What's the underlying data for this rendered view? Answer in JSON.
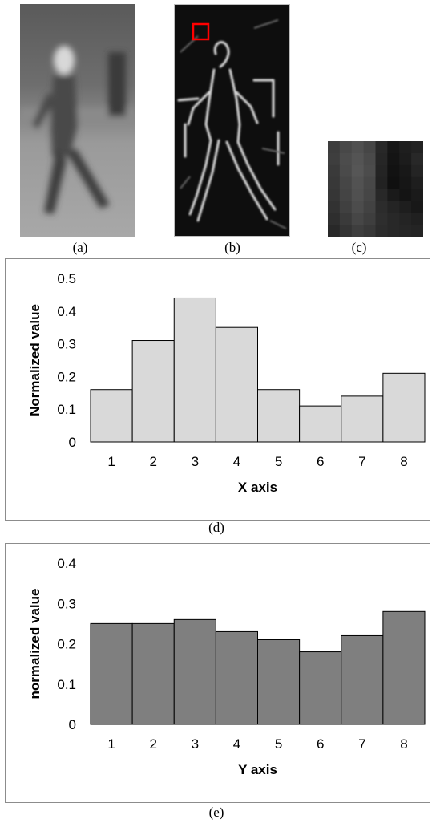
{
  "panels": {
    "a": {
      "caption": "(a)"
    },
    "b": {
      "caption": "(b)"
    },
    "c": {
      "caption": "(c)"
    }
  },
  "colors": {
    "hist_x_fill": "#d9d9d9",
    "hist_y_fill": "#7f7f7f",
    "bar_stroke": "#000000",
    "highlight_box": "#ff0000"
  },
  "chart_data": [
    {
      "type": "bar",
      "caption": "(d)",
      "categories": [
        "1",
        "2",
        "3",
        "4",
        "5",
        "6",
        "7",
        "8"
      ],
      "values": [
        0.16,
        0.31,
        0.44,
        0.35,
        0.16,
        0.11,
        0.14,
        0.21
      ],
      "xlabel": "X axis",
      "ylabel": "Normalized value",
      "ylim": [
        0,
        0.5
      ],
      "yticks": [
        "0",
        "0.1",
        "0.2",
        "0.3",
        "0.4",
        "0.5"
      ],
      "grid": false,
      "fill": "#d9d9d9"
    },
    {
      "type": "bar",
      "caption": "(e)",
      "categories": [
        "1",
        "2",
        "3",
        "4",
        "5",
        "6",
        "7",
        "8"
      ],
      "values": [
        0.25,
        0.25,
        0.26,
        0.23,
        0.21,
        0.18,
        0.22,
        0.28
      ],
      "xlabel": "Y axis",
      "ylabel": "normalized value",
      "ylim": [
        0,
        0.4
      ],
      "yticks": [
        "0",
        "0.1",
        "0.2",
        "0.3",
        "0.4"
      ],
      "grid": false,
      "fill": "#7f7f7f"
    }
  ]
}
